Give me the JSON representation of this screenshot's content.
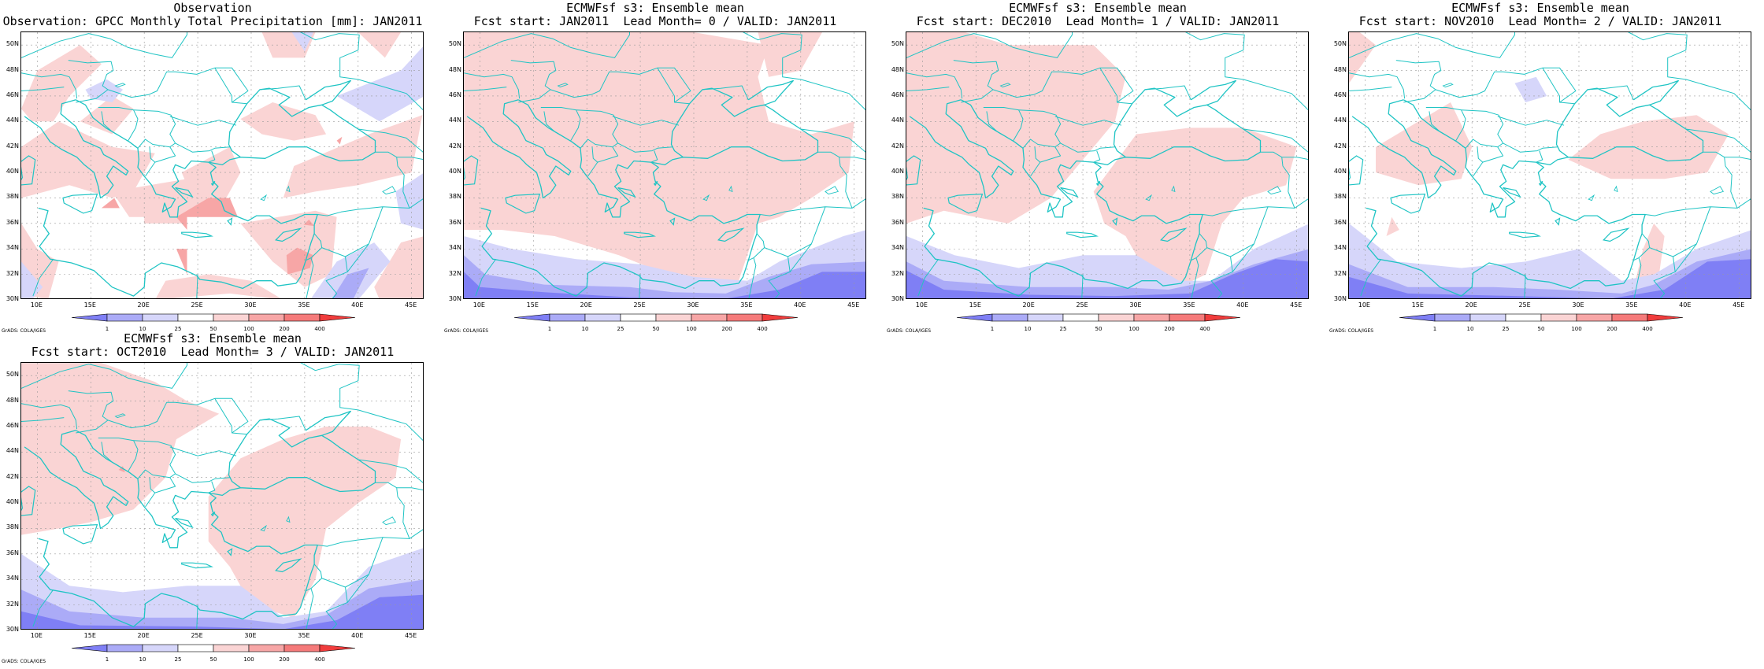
{
  "panels": [
    {
      "title_1": "Observation",
      "title_2": "Observation: GPCC Monthly Total Precipitation [mm]: JAN2011",
      "variant": "obs"
    },
    {
      "title_1": "ECMWFsf s3: Ensemble mean",
      "title_2": "Fcst start: JAN2011  Lead Month= 0 / VALID: JAN2011",
      "variant": "lead0"
    },
    {
      "title_1": "ECMWFsf s3: Ensemble mean",
      "title_2": "Fcst start: DEC2010  Lead Month= 1 / VALID: JAN2011",
      "variant": "lead1"
    },
    {
      "title_1": "ECMWFsf s3: Ensemble mean",
      "title_2": "Fcst start: NOV2010  Lead Month= 2 / VALID: JAN2011",
      "variant": "lead2"
    },
    {
      "title_1": "ECMWFsf s3: Ensemble mean",
      "title_2": "Fcst start: OCT2010  Lead Month= 3 / VALID: JAN2011",
      "variant": "lead3"
    }
  ],
  "lat_labels": [
    "50N",
    "48N",
    "46N",
    "44N",
    "42N",
    "40N",
    "38N",
    "36N",
    "34N",
    "32N",
    "30N"
  ],
  "lon_labels": [
    "10E",
    "15E",
    "20E",
    "25E",
    "30E",
    "35E",
    "40E",
    "45E"
  ],
  "colorbar": {
    "ticks": [
      "1",
      "10",
      "25",
      "50",
      "100",
      "200",
      "400"
    ],
    "colors": [
      "#7f7ff5",
      "#ababf7",
      "#d6d6fa",
      "#ffffff",
      "#fad4d4",
      "#f7a6a6",
      "#f57a7a",
      "#f03c3c"
    ]
  },
  "credit": "GrADS: COLA/IGES",
  "coast_color": "#1fc4c4"
}
